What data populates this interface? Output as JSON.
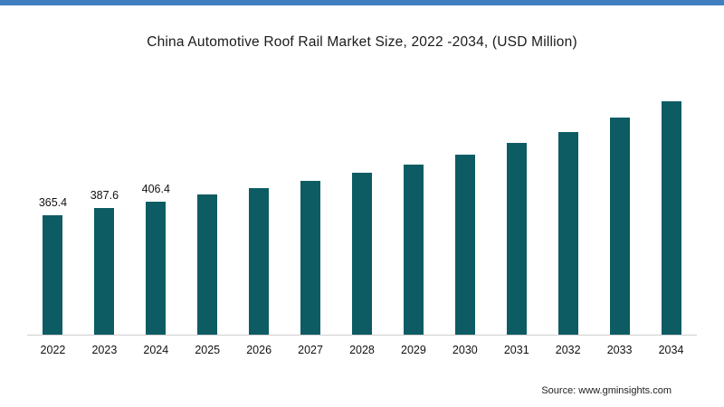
{
  "page": {
    "top_accent_color": "#3f7fbf",
    "background_color": "#ffffff"
  },
  "chart_data": {
    "type": "bar",
    "title": "China Automotive Roof Rail Market Size, 2022 -2034, (USD Million)",
    "categories": [
      "2022",
      "2023",
      "2024",
      "2025",
      "2026",
      "2027",
      "2028",
      "2029",
      "2030",
      "2031",
      "2032",
      "2033",
      "2034"
    ],
    "values": [
      365.4,
      387.6,
      406.4,
      428,
      446,
      468,
      493,
      518,
      548,
      585,
      618,
      662,
      712
    ],
    "data_labels": [
      "365.4",
      "387.6",
      "406.4",
      "",
      "",
      "",
      "",
      "",
      "",
      "",
      "",
      "",
      ""
    ],
    "bar_color": "#0d5c63",
    "xlabel": "",
    "ylabel": "",
    "ylim": [
      0,
      750
    ],
    "grid": false,
    "legend_position": "none",
    "baseline_color": "#cfcfcf"
  },
  "source": {
    "label": "Source: www.gminsights.com"
  }
}
